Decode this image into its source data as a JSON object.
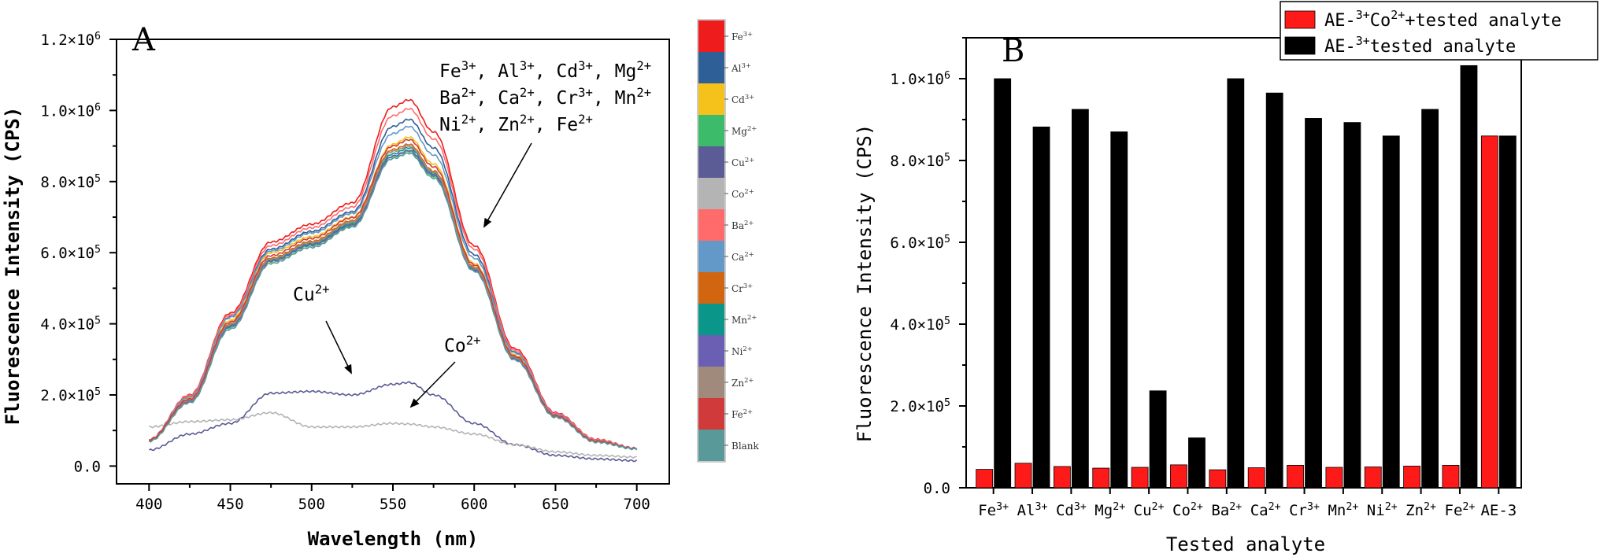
{
  "chart_data": [
    {
      "panel": "A",
      "type": "line",
      "xlabel": "Wavelength (nm)",
      "ylabel": "Fluorescence Intensity (CPS)",
      "xlim": [
        380,
        720
      ],
      "ylim": [
        -50000,
        1200000
      ],
      "xticks": [
        "400",
        "450",
        "500",
        "550",
        "600",
        "650",
        "700"
      ],
      "yticks": [
        {
          "value": 0,
          "label": "0.0"
        },
        {
          "value": 200000,
          "label": "2.0×10^5"
        },
        {
          "value": 400000,
          "label": "4.0×10^5"
        },
        {
          "value": 600000,
          "label": "6.0×10^5"
        },
        {
          "value": 800000,
          "label": "8.0×10^5"
        },
        {
          "value": 1000000,
          "label": "1.0×10^6"
        },
        {
          "value": 1200000,
          "label": "1.2×10^6"
        }
      ],
      "x": [
        400,
        425,
        450,
        475,
        500,
        525,
        550,
        560,
        575,
        600,
        625,
        650,
        675,
        700
      ],
      "series": [
        {
          "name": "Fe3+",
          "color": "#ee1c1c",
          "values": [
            75000,
            200000,
            430000,
            630000,
            680000,
            740000,
            1010000,
            1030000,
            940000,
            620000,
            330000,
            150000,
            75000,
            50000
          ]
        },
        {
          "name": "Al3+",
          "color": "#2f5f97",
          "values": [
            75000,
            195000,
            420000,
            610000,
            660000,
            715000,
            955000,
            975000,
            895000,
            595000,
            320000,
            145000,
            72000,
            50000
          ]
        },
        {
          "name": "Cd3+",
          "color": "#f5c21b",
          "values": [
            75000,
            192000,
            410000,
            600000,
            645000,
            700000,
            905000,
            925000,
            850000,
            570000,
            312000,
            142000,
            70000,
            50000
          ]
        },
        {
          "name": "Mg2+",
          "color": "#3cbc6b",
          "values": [
            70000,
            180000,
            390000,
            575000,
            620000,
            675000,
            870000,
            885000,
            815000,
            550000,
            300000,
            138000,
            68000,
            48000
          ]
        },
        {
          "name": "Cu2+",
          "color": "#5b5b95",
          "values": [
            45000,
            90000,
            120000,
            205000,
            210000,
            200000,
            230000,
            235000,
            200000,
            120000,
            60000,
            30000,
            20000,
            15000
          ]
        },
        {
          "name": "Co2+",
          "color": "#b4b4b4",
          "values": [
            110000,
            125000,
            130000,
            150000,
            110000,
            110000,
            120000,
            118000,
            110000,
            90000,
            60000,
            40000,
            30000,
            25000
          ]
        },
        {
          "name": "Ba2+",
          "color": "#ff6b6b",
          "values": [
            75000,
            198000,
            425000,
            620000,
            670000,
            728000,
            985000,
            1005000,
            920000,
            610000,
            325000,
            148000,
            74000,
            50000
          ]
        },
        {
          "name": "Ca2+",
          "color": "#6399c9",
          "values": [
            74000,
            194000,
            418000,
            605000,
            655000,
            710000,
            935000,
            955000,
            875000,
            585000,
            318000,
            144000,
            71000,
            50000
          ]
        },
        {
          "name": "Cr3+",
          "color": "#d2650f",
          "values": [
            73000,
            186000,
            400000,
            585000,
            632000,
            690000,
            890000,
            905000,
            830000,
            560000,
            306000,
            140000,
            69000,
            49000
          ]
        },
        {
          "name": "Mn2+",
          "color": "#0a9688",
          "values": [
            72000,
            184000,
            395000,
            580000,
            625000,
            682000,
            878000,
            895000,
            822000,
            555000,
            303000,
            139000,
            68000,
            48000
          ]
        },
        {
          "name": "Ni2+",
          "color": "#6a5fb3",
          "values": [
            71000,
            182000,
            392000,
            577000,
            622000,
            678000,
            872000,
            888000,
            818000,
            552000,
            301000,
            138000,
            68000,
            48000
          ]
        },
        {
          "name": "Zn2+",
          "color": "#a08a7c",
          "values": [
            72000,
            185000,
            398000,
            582000,
            628000,
            686000,
            885000,
            900000,
            826000,
            557000,
            305000,
            140000,
            69000,
            49000
          ]
        },
        {
          "name": "Fe2+",
          "color": "#d03a3a",
          "values": [
            74000,
            188000,
            405000,
            592000,
            640000,
            698000,
            900000,
            918000,
            842000,
            566000,
            309000,
            141000,
            70000,
            49000
          ]
        },
        {
          "name": "Blank",
          "color": "#5a9999",
          "values": [
            70000,
            178000,
            385000,
            570000,
            615000,
            672000,
            865000,
            880000,
            810000,
            548000,
            298000,
            137000,
            67000,
            48000
          ]
        }
      ],
      "legend": [
        {
          "label": "Fe3+",
          "color": "#ee1c1c"
        },
        {
          "label": "Al3+",
          "color": "#2f5f97"
        },
        {
          "label": "Cd3+",
          "color": "#f5c21b"
        },
        {
          "label": "Mg2+",
          "color": "#3cbc6b"
        },
        {
          "label": "Cu2+",
          "color": "#5b5b95"
        },
        {
          "label": "Co2+",
          "color": "#b4b4b4"
        },
        {
          "label": "Ba2+",
          "color": "#ff6b6b"
        },
        {
          "label": "Ca2+",
          "color": "#6399c9"
        },
        {
          "label": "Cr3+",
          "color": "#d2650f"
        },
        {
          "label": "Mn2+",
          "color": "#0a9688"
        },
        {
          "label": "Ni2+",
          "color": "#6a5fb3"
        },
        {
          "label": "Zn2+",
          "color": "#a08a7c"
        },
        {
          "label": "Fe2+",
          "color": "#d03a3a"
        },
        {
          "label": "Blank",
          "color": "#5a9999"
        }
      ],
      "annotations": [
        {
          "text": "Fe3+, Al3+, Cd3+, Mg2+",
          "line": 1
        },
        {
          "text": "Ba2+, Ca2+, Cr3+, Mn2+",
          "line": 2
        },
        {
          "text": "Ni2+, Zn2+,  Fe2+",
          "line": 3
        },
        {
          "text": "Cu2+",
          "line": 0
        },
        {
          "text": "Co2+",
          "line": 0
        }
      ]
    },
    {
      "panel": "B",
      "type": "bar",
      "xlabel": "Tested analyte",
      "ylabel": "Fluorescence Intensity (CPS)",
      "ylim": [
        0,
        1100000
      ],
      "yticks": [
        {
          "value": 0,
          "label": "0.0"
        },
        {
          "value": 200000,
          "label": "2.0×10^5"
        },
        {
          "value": 400000,
          "label": "4.0×10^5"
        },
        {
          "value": 600000,
          "label": "6.0×10^5"
        },
        {
          "value": 800000,
          "label": "8.0×10^5"
        },
        {
          "value": 1000000,
          "label": "1.0×10^6"
        }
      ],
      "categories": [
        "Fe3+",
        "Al3+",
        "Cd3+",
        "Mg2+",
        "Cu2+",
        "Co2+",
        "Ba2+",
        "Ca2+",
        "Cr3+",
        "Mn2+",
        "Ni2+",
        "Zn2+",
        "Fe2+",
        "AE-3"
      ],
      "series": [
        {
          "name": "AE-3+Co2++tested analyte",
          "color": "#ff1a1a",
          "values": [
            45000,
            60000,
            52000,
            48000,
            50000,
            56000,
            44000,
            49000,
            55000,
            50000,
            51000,
            53000,
            55000,
            860000
          ]
        },
        {
          "name": "AE-3+tested analyte",
          "color": "#000000",
          "values": [
            1000000,
            882000,
            925000,
            870000,
            237000,
            122000,
            1000000,
            965000,
            903000,
            893000,
            860000,
            925000,
            1032000,
            860000
          ]
        }
      ],
      "legend_position": "top-right"
    }
  ],
  "panelA": {
    "letter": "A",
    "xlabel": "Wavelength (nm)",
    "ylabel": "Fluorescence Intensity (CPS)",
    "annot_line1": "Fe3+, Al3+, Cd3+, Mg2+",
    "annot_line2": "Ba2+, Ca2+, Cr3+, Mn2+",
    "annot_line3": "Ni2+, Zn2+,  Fe2+",
    "annot_cu": "Cu2+",
    "annot_co": "Co2+"
  },
  "panelB": {
    "letter": "B",
    "xlabel": "Tested analyte",
    "ylabel": "Fluorescence Intensity (CPS)"
  }
}
